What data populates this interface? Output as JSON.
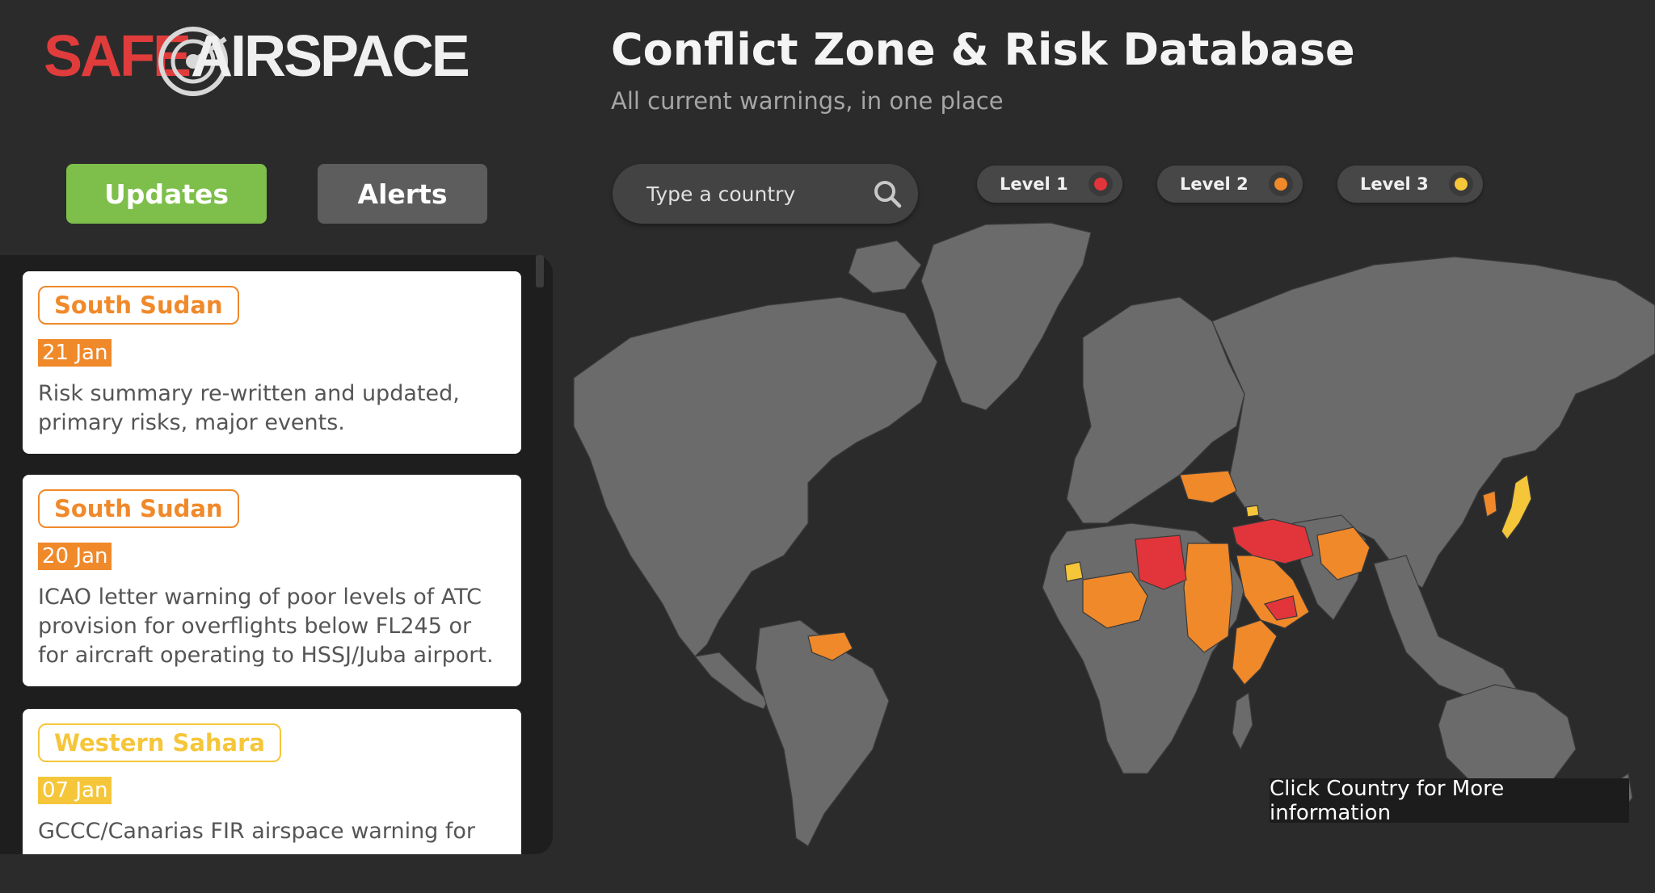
{
  "brand": {
    "logo_part1": "SAFE",
    "logo_part2": "AIRSPACE"
  },
  "header": {
    "title": "Conflict Zone & Risk Database",
    "subtitle": "All current warnings, in one place"
  },
  "tabs": {
    "updates_label": "Updates",
    "alerts_label": "Alerts",
    "active": "Updates"
  },
  "search": {
    "placeholder": "Type a country",
    "value": ""
  },
  "legend": [
    {
      "label": "Level 1",
      "color": "#e2353b"
    },
    {
      "label": "Level 2",
      "color": "#f0892a"
    },
    {
      "label": "Level 3",
      "color": "#f5c63a"
    }
  ],
  "updates": [
    {
      "country": "South Sudan",
      "date": "21 Jan",
      "level": 2,
      "text": "Risk summary re-written and updated, primary risks, major events."
    },
    {
      "country": "South Sudan",
      "date": "20 Jan",
      "level": 2,
      "text": "ICAO letter warning of poor levels of ATC provision for overflights below FL245 or for aircraft operating to HSSJ/Juba airport."
    },
    {
      "country": "Western Sahara",
      "date": "07 Jan",
      "level": 3,
      "text": "GCCC/Canarias FIR airspace warning for"
    }
  ],
  "map": {
    "caption": "Click Country for More information",
    "land_color": "#6b6b6b",
    "level_1_regions": [
      "Libya",
      "Syria",
      "Iraq",
      "Iran",
      "Yemen"
    ],
    "level_2_regions": [
      "Ukraine",
      "Mali",
      "Egypt",
      "Sudan",
      "South Sudan",
      "Saudi Arabia",
      "Somalia",
      "Afghanistan",
      "Pakistan",
      "Venezuela",
      "North Korea"
    ],
    "level_3_regions": [
      "Western Sahara",
      "Japan",
      "Armenia"
    ]
  }
}
